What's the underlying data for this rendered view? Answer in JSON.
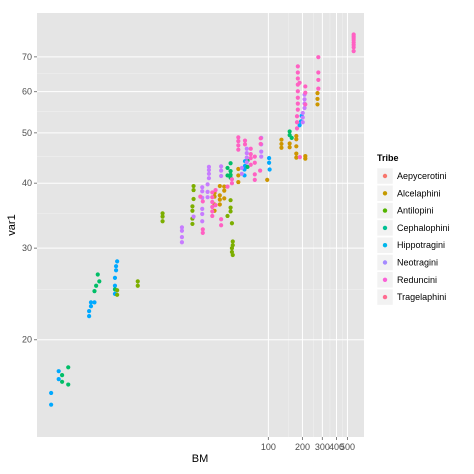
{
  "chart_data": {
    "type": "scatter",
    "xlabel": "BM",
    "ylabel": "var1",
    "x_scale": "log",
    "y_scale": "log",
    "xlim": [
      0.9,
      700
    ],
    "ylim": [
      13,
      85
    ],
    "x_ticks": [
      100,
      200,
      300,
      400,
      500
    ],
    "x_tick_labels": [
      "100",
      "200",
      "300",
      "400",
      "500"
    ],
    "y_ticks": [
      20,
      30,
      40,
      50,
      60,
      70
    ],
    "y_tick_labels": [
      "20",
      "30",
      "40",
      "50",
      "60",
      "70"
    ],
    "grid": true,
    "legend_position": "right",
    "legend": {
      "title": "Tribe",
      "entries": [
        {
          "name": "Aepycerotini",
          "color": "#F8766D"
        },
        {
          "name": "Alcelaphini",
          "color": "#C49A00"
        },
        {
          "name": "Antilopini",
          "color": "#53B400"
        },
        {
          "name": "Cephalophini",
          "color": "#00C094"
        },
        {
          "name": "Hippotragini",
          "color": "#00B6EB"
        },
        {
          "name": "Neotragini",
          "color": "#A58AFF"
        },
        {
          "name": "Reduncini",
          "color": "#FB61D7"
        },
        {
          "name": "Tragelaphini",
          "color": "#FF6C91"
        }
      ]
    },
    "series": [
      {
        "name": "Neotragini",
        "color": "#00A9FF",
        "points": [
          [
            1.2,
            15.8
          ],
          [
            1.2,
            15.0
          ],
          [
            1.4,
            16.8
          ],
          [
            1.4,
            17.4
          ],
          [
            2.6,
            22.2
          ],
          [
            2.6,
            22.7
          ],
          [
            2.7,
            23.2
          ],
          [
            2.7,
            23.6
          ],
          [
            2.9,
            23.6
          ],
          [
            4.4,
            24.5
          ],
          [
            4.4,
            25.4
          ],
          [
            4.4,
            26.3
          ],
          [
            4.5,
            27.2
          ],
          [
            4.5,
            27.7
          ],
          [
            4.6,
            28.3
          ],
          [
            61.5,
            41.4
          ],
          [
            61.5,
            42.5
          ],
          [
            62.1,
            43.2
          ],
          [
            62.1,
            44.1
          ],
          [
            101.4,
            44.7
          ],
          [
            101.4,
            43.8
          ],
          [
            102.5,
            42.5
          ],
          [
            188.7,
            51.7
          ],
          [
            194.2,
            52.6
          ],
          [
            196.8,
            53.9
          ]
        ]
      },
      {
        "name": "Cephalophini",
        "color": "#00BE67",
        "points": [
          [
            1.5,
            16.6
          ],
          [
            1.5,
            17.1
          ],
          [
            1.7,
            16.4
          ],
          [
            1.7,
            17.7
          ],
          [
            2.9,
            24.8
          ],
          [
            3.0,
            25.4
          ],
          [
            3.2,
            25.9
          ],
          [
            3.1,
            26.7
          ],
          [
            4.4,
            25.0
          ],
          [
            43.5,
            41.4
          ],
          [
            43.5,
            42.8
          ],
          [
            46.3,
            41.0
          ],
          [
            46.3,
            41.5
          ],
          [
            46.3,
            42.2
          ],
          [
            46.3,
            43.7
          ],
          [
            65.4,
            43.0
          ],
          [
            65.4,
            44.2
          ],
          [
            154.1,
            50.3
          ],
          [
            154.1,
            49.5
          ],
          [
            160.7,
            48.9
          ]
        ]
      },
      {
        "name": "Antilopini",
        "color": "#7CAE00",
        "points": [
          [
            4.6,
            24.4
          ],
          [
            4.6,
            24.9
          ],
          [
            7.0,
            25.4
          ],
          [
            7.0,
            25.9
          ],
          [
            11.6,
            33.8
          ],
          [
            11.6,
            34.5
          ],
          [
            11.6,
            35.0
          ],
          [
            21.3,
            34.2
          ],
          [
            21.3,
            35.4
          ],
          [
            21.3,
            36.1
          ],
          [
            21.3,
            33.4
          ],
          [
            21.8,
            37.3
          ],
          [
            21.8,
            38.8
          ],
          [
            21.8,
            39.5
          ],
          [
            46.3,
            35.3
          ],
          [
            46.3,
            35.9
          ],
          [
            47.6,
            33.5
          ],
          [
            47.6,
            29.5
          ],
          [
            47.6,
            30.0
          ],
          [
            48.4,
            30.4
          ],
          [
            48.4,
            30.9
          ],
          [
            48.4,
            29.1
          ],
          [
            43.5,
            34.6
          ],
          [
            46.3,
            37.1
          ]
        ]
      },
      {
        "name": "Alcelaphini",
        "color": "#CD9600",
        "points": [
          [
            33.4,
            35.4
          ],
          [
            33.4,
            36.4
          ],
          [
            33.4,
            37.7
          ],
          [
            33.4,
            38.3
          ],
          [
            37.2,
            36.4
          ],
          [
            37.2,
            37.2
          ],
          [
            37.2,
            37.9
          ],
          [
            37.2,
            39.5
          ],
          [
            40.7,
            37.4
          ],
          [
            40.7,
            38.7
          ],
          [
            40.7,
            39.4
          ],
          [
            54.2,
            40.2
          ],
          [
            54.2,
            41.4
          ],
          [
            54.2,
            42.6
          ],
          [
            97.6,
            40.6
          ],
          [
            130.4,
            46.8
          ],
          [
            130.4,
            47.6
          ],
          [
            130.4,
            48.5
          ],
          [
            154.1,
            46.9
          ],
          [
            154.1,
            47.7
          ],
          [
            176.5,
            44.8
          ],
          [
            176.5,
            45.6
          ],
          [
            176.5,
            47.1
          ],
          [
            176.5,
            48.6
          ],
          [
            176.5,
            49.3
          ],
          [
            212.0,
            45.1
          ],
          [
            212.0,
            44.6
          ],
          [
            271.6,
            56.7
          ],
          [
            271.6,
            58.1
          ],
          [
            271.6,
            59.6
          ]
        ]
      },
      {
        "name": "Reduncini",
        "color": "#C77CFF",
        "points": [
          [
            17.2,
            30.8
          ],
          [
            17.2,
            31.5
          ],
          [
            17.2,
            32.4
          ],
          [
            17.2,
            32.9
          ],
          [
            21.8,
            34.5
          ],
          [
            26.0,
            33.8
          ],
          [
            26.0,
            34.9
          ],
          [
            26.0,
            35.7
          ],
          [
            26.0,
            37.5
          ],
          [
            26.0,
            38.6
          ],
          [
            26.0,
            39.3
          ],
          [
            29.0,
            37.6
          ],
          [
            29.0,
            38.5
          ],
          [
            29.0,
            39.8
          ],
          [
            29.8,
            40.9
          ],
          [
            29.8,
            41.7
          ],
          [
            29.8,
            42.4
          ],
          [
            29.8,
            43.0
          ],
          [
            38.2,
            43.1
          ],
          [
            38.2,
            42.3
          ],
          [
            38.2,
            41.3
          ],
          [
            58.2,
            41.7
          ],
          [
            58.2,
            42.8
          ],
          [
            64.4,
            43.9
          ],
          [
            64.4,
            44.8
          ],
          [
            64.4,
            45.7
          ],
          [
            64.4,
            46.6
          ],
          [
            86.4,
            45.0
          ],
          [
            86.4,
            46.0
          ],
          [
            86.4,
            47.5
          ],
          [
            86.4,
            48.9
          ],
          [
            201.3,
            52.4
          ],
          [
            201.3,
            53.5
          ],
          [
            201.3,
            54.6
          ],
          [
            208.7,
            55.8
          ],
          [
            208.7,
            56.9
          ],
          [
            208.7,
            58.0
          ],
          [
            208.7,
            59.2
          ]
        ]
      },
      {
        "name": "Tragelaphini",
        "color": "#FF61C3",
        "points": [
          [
            25.0,
            37.7
          ],
          [
            26.3,
            36.9
          ],
          [
            26.3,
            32.6
          ],
          [
            26.3,
            32.1
          ],
          [
            31.9,
            38.4
          ],
          [
            31.9,
            37.6
          ],
          [
            31.9,
            36.8
          ],
          [
            31.9,
            36.0
          ],
          [
            31.9,
            35.3
          ],
          [
            31.9,
            34.6
          ],
          [
            34.1,
            36.3
          ],
          [
            34.1,
            38.8
          ],
          [
            38.2,
            34.1
          ],
          [
            38.2,
            33.2
          ],
          [
            43.5,
            39.4
          ],
          [
            47.6,
            40.0
          ],
          [
            47.6,
            40.7
          ],
          [
            54.2,
            46.4
          ],
          [
            54.2,
            47.3
          ],
          [
            54.2,
            48.2
          ],
          [
            54.2,
            49.0
          ],
          [
            62.1,
            48.3
          ],
          [
            62.1,
            47.5
          ],
          [
            69.8,
            46.6
          ],
          [
            69.8,
            45.5
          ],
          [
            69.8,
            44.7
          ],
          [
            69.8,
            43.4
          ],
          [
            75.8,
            43.8
          ],
          [
            75.8,
            45.0
          ],
          [
            85.4,
            47.6
          ],
          [
            85.4,
            48.8
          ],
          [
            75.8,
            41.6
          ],
          [
            75.8,
            40.6
          ],
          [
            84.5,
            42.3
          ],
          [
            179.0,
            51.0
          ],
          [
            179.0,
            52.4
          ],
          [
            179.0,
            53.8
          ],
          [
            182.0,
            55.4
          ],
          [
            182.0,
            56.9
          ],
          [
            182.0,
            58.4
          ],
          [
            182.0,
            60.1
          ],
          [
            182.0,
            61.9
          ],
          [
            182.0,
            63.6
          ],
          [
            182.0,
            65.3
          ],
          [
            182.0,
            67.1
          ],
          [
            188.7,
            62.4
          ],
          [
            212.0,
            56.7
          ],
          [
            212.0,
            59.7
          ],
          [
            212.0,
            61.4
          ],
          [
            276.3,
            60.8
          ],
          [
            276.3,
            63.2
          ],
          [
            276.3,
            65.3
          ],
          [
            276.3,
            69.9
          ],
          [
            567.2,
            73.0
          ],
          [
            567.2,
            73.8
          ],
          [
            567.2,
            74.6
          ],
          [
            567.2,
            75.4
          ],
          [
            567.2,
            76.1
          ],
          [
            567.2,
            76.7
          ],
          [
            567.2,
            77.3
          ],
          [
            567.2,
            71.8
          ],
          [
            189.7,
            44.9
          ]
        ]
      }
    ]
  }
}
